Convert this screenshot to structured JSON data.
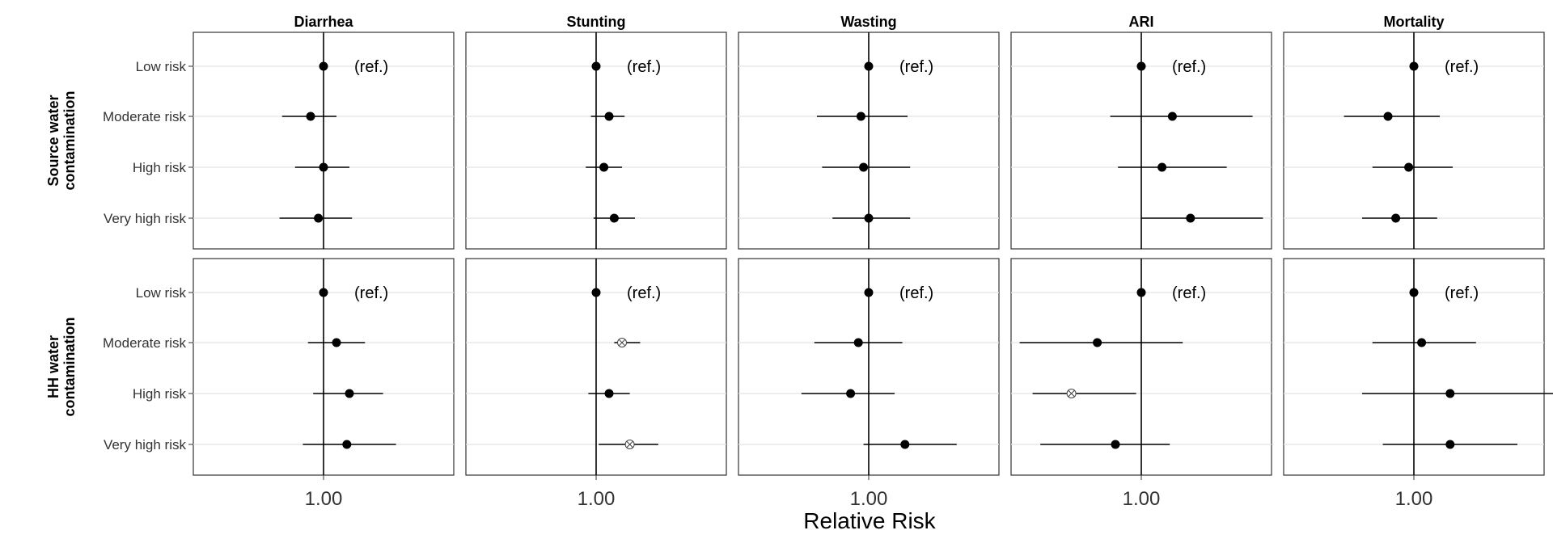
{
  "chart_data": {
    "type": "scatter",
    "subtype": "forest-plot-facet-grid",
    "xlabel": "Relative Risk",
    "x_tick_labels": [
      "1.00"
    ],
    "reference_value": 1.0,
    "ref_label": "(ref.)",
    "columns": [
      "Diarrhea",
      "Stunting",
      "Wasting",
      "ARI",
      "Mortality"
    ],
    "rows": [
      "Source water contamination",
      "HH water contamination"
    ],
    "categories": [
      "Low risk",
      "Moderate risk",
      "High risk",
      "Very high risk"
    ],
    "legend": "none",
    "grid": "horizontal-major",
    "panels": [
      [
        {
          "points": [
            {
              "category": "Low risk",
              "rr": 1.0,
              "ref": true
            },
            {
              "category": "Moderate risk",
              "rr": 0.95,
              "lo": 0.84,
              "hi": 1.05
            },
            {
              "category": "High risk",
              "rr": 1.0,
              "lo": 0.89,
              "hi": 1.1
            },
            {
              "category": "Very high risk",
              "rr": 0.98,
              "lo": 0.83,
              "hi": 1.11
            }
          ]
        },
        {
          "points": [
            {
              "category": "Low risk",
              "rr": 1.0,
              "ref": true
            },
            {
              "category": "Moderate risk",
              "rr": 1.05,
              "lo": 0.98,
              "hi": 1.11
            },
            {
              "category": "High risk",
              "rr": 1.03,
              "lo": 0.96,
              "hi": 1.1
            },
            {
              "category": "Very high risk",
              "rr": 1.07,
              "lo": 0.99,
              "hi": 1.15
            }
          ]
        },
        {
          "points": [
            {
              "category": "Low risk",
              "rr": 1.0,
              "ref": true
            },
            {
              "category": "Moderate risk",
              "rr": 0.97,
              "lo": 0.8,
              "hi": 1.15
            },
            {
              "category": "High risk",
              "rr": 0.98,
              "lo": 0.82,
              "hi": 1.16
            },
            {
              "category": "Very high risk",
              "rr": 1.0,
              "lo": 0.86,
              "hi": 1.16
            }
          ]
        },
        {
          "points": [
            {
              "category": "Low risk",
              "rr": 1.0,
              "ref": true
            },
            {
              "category": "Moderate risk",
              "rr": 1.12,
              "lo": 0.88,
              "hi": 1.43
            },
            {
              "category": "High risk",
              "rr": 1.08,
              "lo": 0.91,
              "hi": 1.33
            },
            {
              "category": "Very high risk",
              "rr": 1.19,
              "lo": 1.0,
              "hi": 1.47
            }
          ]
        },
        {
          "points": [
            {
              "category": "Low risk",
              "rr": 1.0,
              "ref": true
            },
            {
              "category": "Moderate risk",
              "rr": 0.9,
              "lo": 0.73,
              "hi": 1.1
            },
            {
              "category": "High risk",
              "rr": 0.98,
              "lo": 0.84,
              "hi": 1.15
            },
            {
              "category": "Very high risk",
              "rr": 0.93,
              "lo": 0.8,
              "hi": 1.09
            }
          ]
        }
      ],
      [
        {
          "points": [
            {
              "category": "Low risk",
              "rr": 1.0,
              "ref": true
            },
            {
              "category": "Moderate risk",
              "rr": 1.05,
              "lo": 0.94,
              "hi": 1.16
            },
            {
              "category": "High risk",
              "rr": 1.1,
              "lo": 0.96,
              "hi": 1.23
            },
            {
              "category": "Very high risk",
              "rr": 1.09,
              "lo": 0.92,
              "hi": 1.28
            }
          ]
        },
        {
          "points": [
            {
              "category": "Low risk",
              "rr": 1.0,
              "ref": true
            },
            {
              "category": "Moderate risk",
              "rr": 1.1,
              "lo": 1.07,
              "hi": 1.17,
              "marker": "open-x"
            },
            {
              "category": "High risk",
              "rr": 1.05,
              "lo": 0.97,
              "hi": 1.13
            },
            {
              "category": "Very high risk",
              "rr": 1.13,
              "lo": 1.01,
              "hi": 1.24,
              "marker": "open-x"
            }
          ]
        },
        {
          "points": [
            {
              "category": "Low risk",
              "rr": 1.0,
              "ref": true
            },
            {
              "category": "Moderate risk",
              "rr": 0.96,
              "lo": 0.79,
              "hi": 1.13
            },
            {
              "category": "High risk",
              "rr": 0.93,
              "lo": 0.74,
              "hi": 1.1
            },
            {
              "category": "Very high risk",
              "rr": 1.14,
              "lo": 0.98,
              "hi": 1.34
            }
          ]
        },
        {
          "points": [
            {
              "category": "Low risk",
              "rr": 1.0,
              "ref": true
            },
            {
              "category": "Moderate risk",
              "rr": 0.83,
              "lo": 0.53,
              "hi": 1.16
            },
            {
              "category": "High risk",
              "rr": 0.73,
              "lo": 0.58,
              "hi": 0.98,
              "marker": "open-x"
            },
            {
              "category": "Very high risk",
              "rr": 0.9,
              "lo": 0.61,
              "hi": 1.11
            }
          ]
        },
        {
          "points": [
            {
              "category": "Low risk",
              "rr": 1.0,
              "ref": true
            },
            {
              "category": "Moderate risk",
              "rr": 1.03,
              "lo": 0.84,
              "hi": 1.24
            },
            {
              "category": "High risk",
              "rr": 1.14,
              "lo": 0.8,
              "hi": 1.63
            },
            {
              "category": "Very high risk",
              "rr": 1.14,
              "lo": 0.88,
              "hi": 1.4
            }
          ]
        }
      ]
    ]
  }
}
